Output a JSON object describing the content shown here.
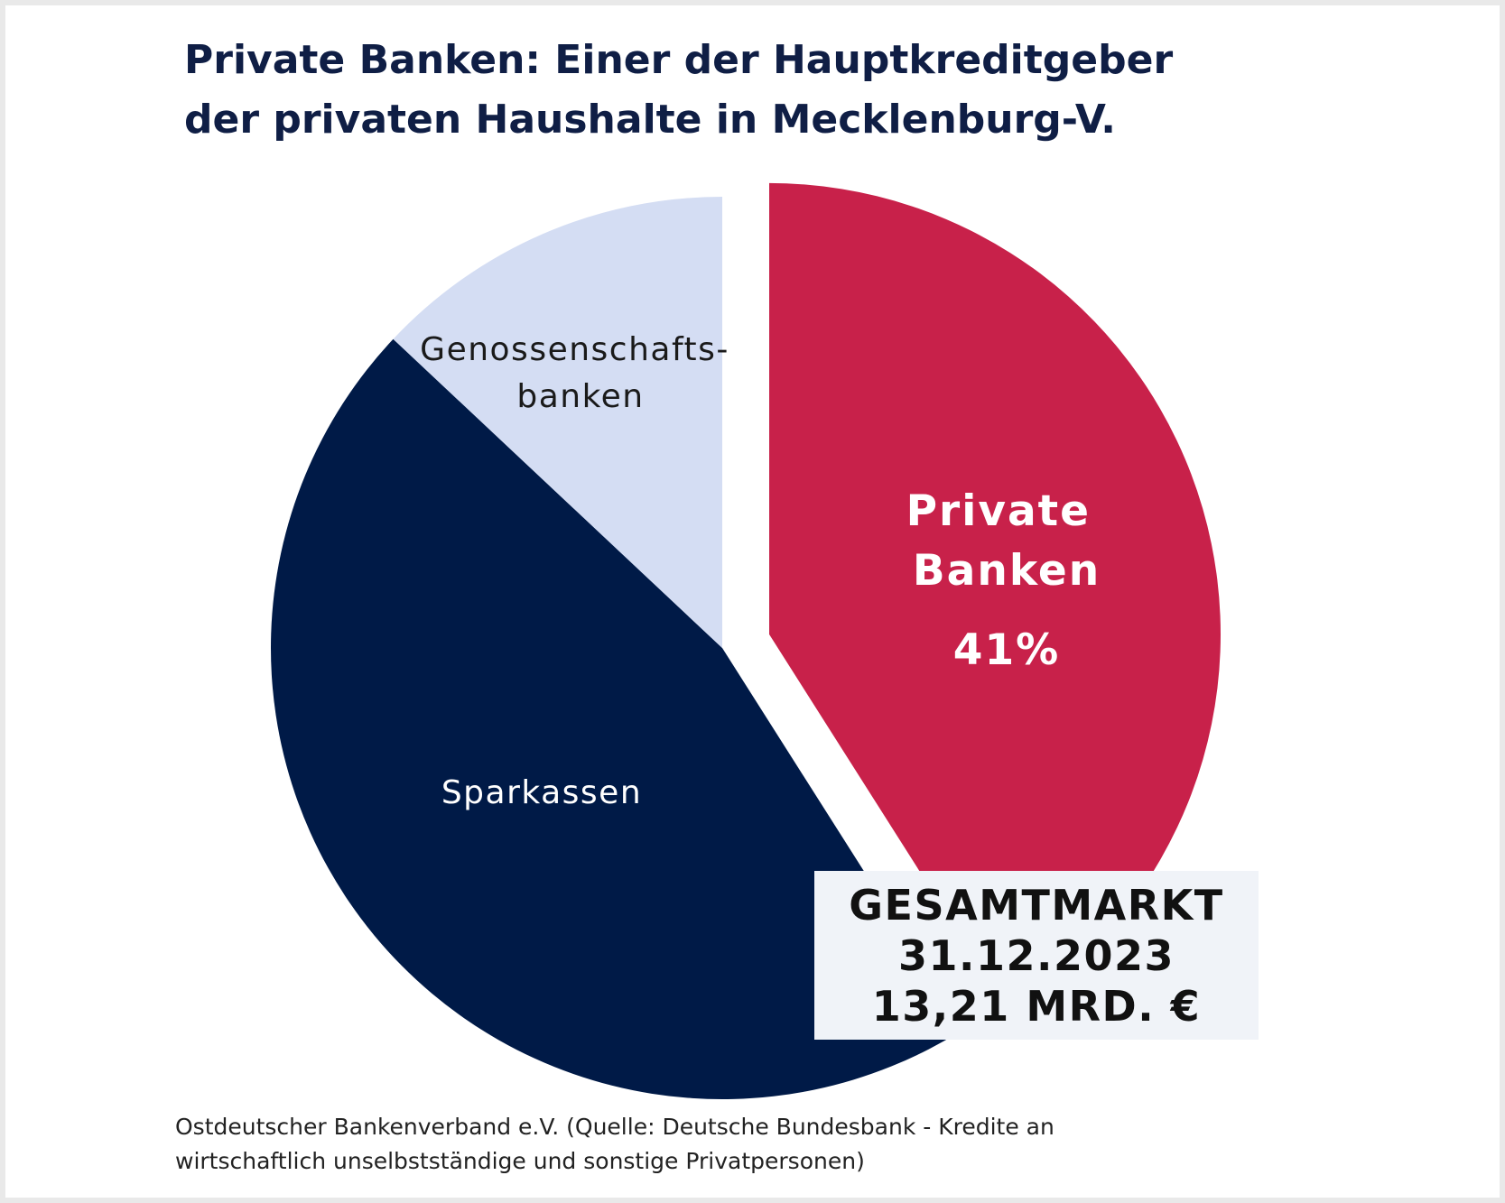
{
  "title_lines": [
    "Private Banken: Einer der Hauptkreditgeber",
    "der privaten Haushalte in Mecklenburg-V."
  ],
  "chart_data": {
    "type": "pie",
    "title": "Private Banken: Einer der Hauptkreditgeber der privaten Haushalte in Mecklenburg-V.",
    "unit": "%",
    "slices": [
      {
        "label_lines": [
          "Private",
          "Banken"
        ],
        "value": 41,
        "value_label": "41%",
        "color": "#c8214a",
        "exploded": true
      },
      {
        "label_lines": [
          "Sparkassen"
        ],
        "value": 46,
        "color": "#001a47"
      },
      {
        "label_lines": [
          "Genossenschafts-",
          "banken"
        ],
        "value": 13,
        "color": "#d4ddf3"
      }
    ]
  },
  "total_box": {
    "lines": [
      "GESAMTMARKT",
      "31.12.2023",
      "13,21 MRD. €"
    ]
  },
  "source_lines": [
    "Ostdeutscher Bankenverband e.V. (Quelle: Deutsche Bundesbank - Kredite an",
    "wirtschaftlich unselbstständige und sonstige Privatpersonen)"
  ]
}
